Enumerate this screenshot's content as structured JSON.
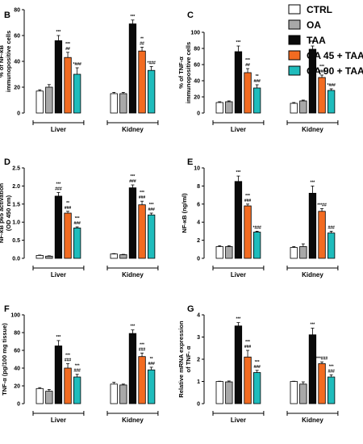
{
  "legend": {
    "items": [
      {
        "label": "CTRL",
        "color": "#ffffff"
      },
      {
        "label": "OA",
        "color": "#a8a8a8"
      },
      {
        "label": "TAA",
        "color": "#0a0a0a"
      },
      {
        "label": "OA 45 + TAA",
        "color": "#f26b21"
      },
      {
        "label": "OA 90 + TAA",
        "color": "#1fbcbc"
      }
    ]
  },
  "chart_data": [
    {
      "panel": "B",
      "type": "bar",
      "ylabel": "% of NF-κB immunopositive cells",
      "ylim": [
        0,
        80
      ],
      "yticks": [
        "0",
        "20",
        "40",
        "60",
        "80"
      ],
      "groups": [
        {
          "name": "Liver",
          "values": [
            17,
            20,
            56,
            43,
            30
          ],
          "errors": [
            1,
            2,
            4,
            4,
            5
          ],
          "annotations": [
            [],
            [],
            [
              "***"
            ],
            [
              "***",
              "##"
            ],
            [
              "*###"
            ]
          ]
        },
        {
          "name": "Kidney",
          "values": [
            15,
            15,
            69,
            48,
            33
          ],
          "errors": [
            1,
            1,
            3,
            3,
            3
          ],
          "annotations": [
            [],
            [],
            [
              "***"
            ],
            [
              "**",
              "##"
            ],
            [
              "*###"
            ]
          ]
        }
      ]
    },
    {
      "panel": "C",
      "type": "bar",
      "ylabel": "% of TNF-α immunopositive cells",
      "ylim": [
        0,
        100
      ],
      "yticks": [
        "0",
        "20",
        "40",
        "60",
        "80",
        "100"
      ],
      "groups": [
        {
          "name": "Liver",
          "values": [
            13,
            14,
            76,
            50,
            31
          ],
          "errors": [
            1,
            1,
            7,
            5,
            4
          ],
          "annotations": [
            [],
            [],
            [
              "***"
            ],
            [
              "***",
              "##"
            ],
            [
              "**",
              "###"
            ]
          ]
        },
        {
          "name": "Kidney",
          "values": [
            12,
            15,
            79,
            44,
            28
          ],
          "errors": [
            1,
            1,
            4,
            3,
            2
          ],
          "annotations": [
            [],
            [],
            [
              "***"
            ],
            [
              "***",
              "###"
            ],
            [
              "*###"
            ]
          ]
        }
      ]
    },
    {
      "panel": "D",
      "type": "bar",
      "ylabel": "NF-κB p65 activation (OD 450 nm)",
      "ylim": [
        0,
        2.5
      ],
      "yticks": [
        "0.0",
        "0.5",
        "1.0",
        "1.5",
        "2.0",
        "2.5"
      ],
      "groups": [
        {
          "name": "Liver",
          "values": [
            0.08,
            0.06,
            1.72,
            1.25,
            0.84
          ],
          "errors": [
            0.01,
            0.01,
            0.1,
            0.05,
            0.03
          ],
          "annotations": [
            [],
            [],
            [
              "***",
              "###"
            ],
            [
              "**",
              "###"
            ],
            [
              "***",
              "###"
            ]
          ]
        },
        {
          "name": "Kidney",
          "values": [
            0.12,
            0.1,
            1.95,
            1.48,
            1.2
          ],
          "errors": [
            0.01,
            0.01,
            0.08,
            0.1,
            0.05
          ],
          "annotations": [
            [],
            [],
            [
              "***",
              "###"
            ],
            [
              "***",
              "###"
            ],
            [
              "***",
              "###"
            ]
          ]
        }
      ]
    },
    {
      "panel": "E",
      "type": "bar",
      "ylabel": "NF-κB (ng/ml)",
      "ylim": [
        0,
        10
      ],
      "yticks": [
        "0",
        "2",
        "4",
        "6",
        "8",
        "10"
      ],
      "groups": [
        {
          "name": "Liver",
          "values": [
            1.3,
            1.3,
            8.5,
            5.8,
            2.9
          ],
          "errors": [
            0.1,
            0.1,
            0.6,
            0.2,
            0.1
          ],
          "annotations": [
            [],
            [],
            [
              "***"
            ],
            [
              "***",
              "###"
            ],
            [
              "*###"
            ]
          ]
        },
        {
          "name": "Kidney",
          "values": [
            1.2,
            1.3,
            7.2,
            5.2,
            2.8
          ],
          "errors": [
            0.1,
            0.3,
            0.8,
            0.3,
            0.2
          ],
          "annotations": [
            [],
            [],
            [
              "***"
            ],
            [
              "***##"
            ],
            [
              "###"
            ]
          ]
        }
      ]
    },
    {
      "panel": "F",
      "type": "bar",
      "ylabel": "TNF-α (pg/100 mg tissue)",
      "ylim": [
        0,
        100
      ],
      "yticks": [
        "0",
        "20",
        "40",
        "60",
        "80",
        "100"
      ],
      "groups": [
        {
          "name": "Liver",
          "values": [
            17,
            14,
            65,
            40,
            30
          ],
          "errors": [
            1,
            2,
            6,
            5,
            3
          ],
          "annotations": [
            [],
            [],
            [
              "***"
            ],
            [
              "***",
              "###"
            ],
            [
              "***",
              "###"
            ]
          ]
        },
        {
          "name": "Kidney",
          "values": [
            22,
            21,
            79,
            53,
            38
          ],
          "errors": [
            2,
            1,
            4,
            4,
            3
          ],
          "annotations": [
            [],
            [],
            [
              "***"
            ],
            [
              "***",
              "###"
            ],
            [
              "**",
              "###"
            ]
          ]
        }
      ]
    },
    {
      "panel": "G",
      "type": "bar",
      "ylabel": "Relative mRNA expression of TNF- α",
      "ylim": [
        0,
        4
      ],
      "yticks": [
        "0",
        "1",
        "2",
        "3",
        "4"
      ],
      "groups": [
        {
          "name": "Liver",
          "values": [
            1.0,
            0.98,
            3.5,
            2.1,
            1.4
          ],
          "errors": [
            0.01,
            0.04,
            0.15,
            0.3,
            0.1
          ],
          "annotations": [
            [],
            [],
            [
              "***"
            ],
            [
              "***",
              "###"
            ],
            [
              "***",
              "###"
            ]
          ]
        },
        {
          "name": "Kidney",
          "values": [
            1.0,
            0.88,
            3.1,
            1.8,
            1.2
          ],
          "errors": [
            0.01,
            0.1,
            0.3,
            0.08,
            0.1
          ],
          "annotations": [
            [],
            [],
            [
              "***"
            ],
            [
              "***###"
            ],
            [
              "***",
              "###"
            ]
          ]
        }
      ]
    }
  ]
}
